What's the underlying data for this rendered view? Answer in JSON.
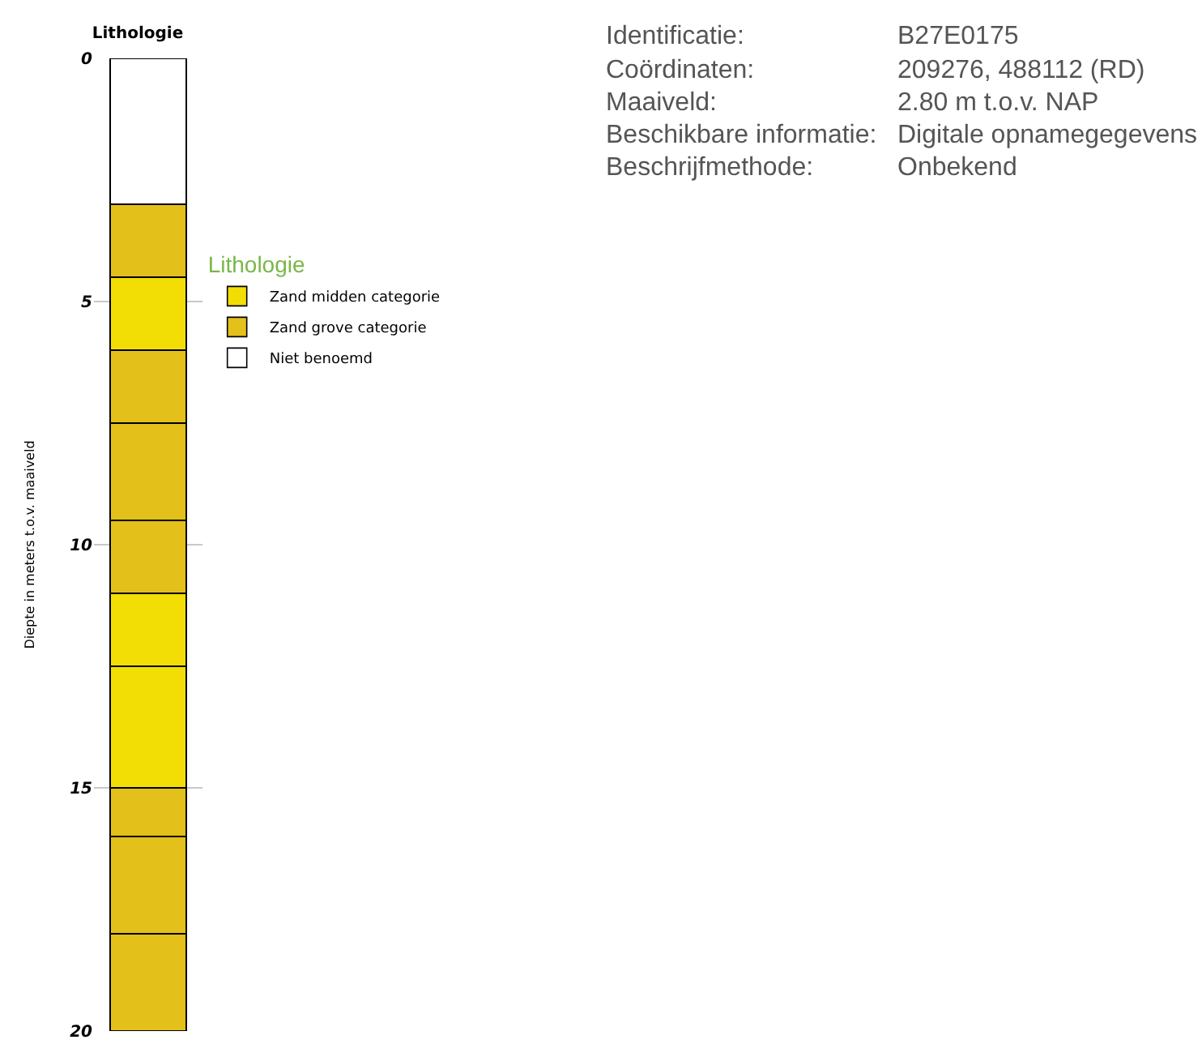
{
  "chart_data": {
    "type": "bar",
    "stacked": true,
    "title": "Lithologie",
    "ylabel": "Diepte in meters t.o.v. maaiveld",
    "legend_title": "Lithologie",
    "legend": "top right",
    "grid": "y",
    "tick_labels": "y",
    "categories": [
      null
    ],
    "ylim": [
      20,
      0
    ],
    "yticks": [
      0,
      5,
      10,
      15,
      20
    ],
    "series": [
      {
        "name": "Niet benoemd",
        "color": "#ffffff",
        "values": [
          3
        ]
      },
      {
        "name": "Zand grove categorie",
        "color": "#e4c01a",
        "values": [
          1.5
        ]
      },
      {
        "name": "Zand midden categorie",
        "color": "#f2de05",
        "values": [
          1.5
        ]
      },
      {
        "color": "#e4c01a",
        "values": [
          1.5
        ]
      },
      {
        "color": "#e4c01a",
        "values": [
          2
        ]
      },
      {
        "color": "#e4c01a",
        "values": [
          1.5
        ]
      },
      {
        "color": "#f2de05",
        "values": [
          1.5
        ]
      },
      {
        "color": "#f2de05",
        "values": [
          2.5
        ]
      },
      {
        "color": "#e4c01a",
        "values": [
          1
        ]
      },
      {
        "color": "#e4c01a",
        "values": [
          2
        ]
      },
      {
        "color": "#e4c01a",
        "values": [
          2
        ]
      }
    ],
    "annotations": [
      "Identificatie:",
      "B27E0175",
      "Coördinaten:",
      "209276, 488112 (RD)",
      "Maaiveld:",
      "2.80 m t.o.v. NAP",
      "Beschikbare informatie:",
      "Digitale opnamegegevens",
      "Beschrijfmethode:",
      "Onbekend"
    ]
  }
}
